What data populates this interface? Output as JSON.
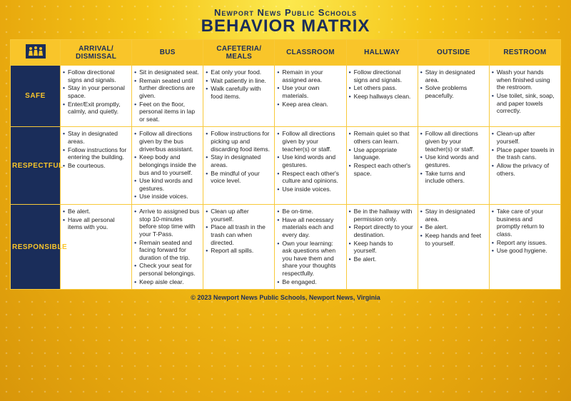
{
  "header": {
    "org": "Newport News Public Schools",
    "title": "Behavior Matrix"
  },
  "colors": {
    "navy": "#1a2d5a",
    "gold": "#f9c52a",
    "gold_dark": "#e8a90e",
    "white": "#ffffff",
    "border": "#f8c93a"
  },
  "columns": [
    "Arrival/ Dismissal",
    "Bus",
    "Cafeteria/ Meals",
    "Classroom",
    "Hallway",
    "Outside",
    "Restroom"
  ],
  "row_labels": [
    "Safe",
    "Respectful",
    "Responsible"
  ],
  "cells": {
    "safe": [
      [
        "Follow directional signs and signals.",
        "Stay in your personal space.",
        "Enter/Exit promptly, calmly, and quietly."
      ],
      [
        "Sit in designated seat.",
        "Remain seated until further directions are given.",
        "Feet on the floor, personal items in lap or seat."
      ],
      [
        "Eat only your food.",
        "Wait patiently in line.",
        "Walk carefully with food items."
      ],
      [
        "Remain in your assigned area.",
        "Use your own materials.",
        "Keep area clean."
      ],
      [
        "Follow directional signs and signals.",
        "Let others pass.",
        "Keep hallways clean."
      ],
      [
        "Stay in designated area.",
        "Solve problems peacefully."
      ],
      [
        "Wash your hands when finished using the restroom.",
        "Use toilet, sink, soap, and paper towels correctly."
      ]
    ],
    "respectful": [
      [
        "Stay in designated areas.",
        "Follow instructions for entering the building.",
        "Be courteous."
      ],
      [
        "Follow all directions given by the bus driver/bus assistant.",
        "Keep body and belongings inside the bus and to yourself.",
        "Use kind words and gestures.",
        "Use inside voices."
      ],
      [
        "Follow instructions for picking up and discarding food items.",
        "Stay in designated areas.",
        "Be mindful of your voice level."
      ],
      [
        "Follow all directions given by your teacher(s) or staff.",
        "Use kind words and gestures.",
        "Respect each other's culture and opinions.",
        "Use inside voices."
      ],
      [
        "Remain quiet so that others can learn.",
        "Use appropriate language.",
        "Respect each other's space."
      ],
      [
        "Follow all directions given by your teacher(s) or staff.",
        "Use kind words and gestures.",
        "Take turns and include others."
      ],
      [
        "Clean-up after yourself.",
        "Place paper towels in the trash cans.",
        "Allow the privacy of others."
      ]
    ],
    "responsible": [
      [
        "Be alert.",
        "Have all personal items with you."
      ],
      [
        "Arrive to assigned bus stop 10-minutes before stop time with your T-Pass.",
        "Remain seated and facing forward for duration of the trip.",
        "Check your seat for personal belongings.",
        "Keep aisle clear."
      ],
      [
        "Clean up after yourself.",
        "Place all trash in the trash can when directed.",
        "Report all spills."
      ],
      [
        "Be on-time.",
        "Have all necessary materials each and every day.",
        "Own your learning: ask questions when you have them and share your thoughts respectfully.",
        "Be engaged."
      ],
      [
        "Be in the hallway with permission only.",
        "Report directly to your destination.",
        "Keep hands to yourself.",
        "Be alert."
      ],
      [
        "Stay in designated area.",
        "Be alert.",
        "Keep hands and feet to yourself."
      ],
      [
        "Take care of your business and promptly return to class.",
        "Report any issues.",
        "Use good hygiene."
      ]
    ]
  },
  "footer": "© 2023 Newport News Public Schools, Newport News, Virginia"
}
